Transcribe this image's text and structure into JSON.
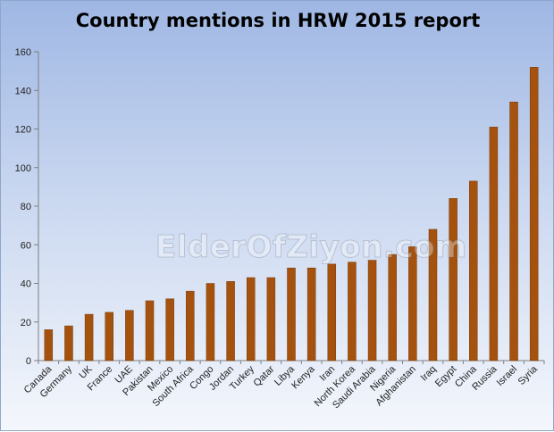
{
  "chart_data": {
    "type": "bar",
    "title": "Country mentions in HRW 2015 report",
    "watermark": "ElderOfZiyon.com",
    "categories": [
      "Canada",
      "Germany",
      "UK",
      "France",
      "UAE",
      "Pakistan",
      "Mexico",
      "South Africa",
      "Congo",
      "Jordan",
      "Turkey",
      "Qatar",
      "Libya",
      "Kenya",
      "Iran",
      "North Korea",
      "Saudi Arabia",
      "Nigeria",
      "Afghanistan",
      "Iraq",
      "Egypt",
      "China",
      "Russia",
      "Israel",
      "Syria"
    ],
    "values": [
      16,
      18,
      24,
      25,
      26,
      31,
      32,
      36,
      40,
      41,
      43,
      43,
      48,
      48,
      50,
      51,
      52,
      55,
      59,
      68,
      84,
      93,
      121,
      134,
      152
    ],
    "ylim": [
      0,
      160
    ],
    "yticks": [
      "0",
      "20",
      "40",
      "60",
      "80",
      "100",
      "120",
      "140",
      "160"
    ],
    "xlabel": "",
    "ylabel": "",
    "grid": false,
    "legend": "none",
    "colors": {
      "bar": "#a5520f",
      "bar_edge": "#7a3a08",
      "axis": "#7f7f7f"
    }
  }
}
